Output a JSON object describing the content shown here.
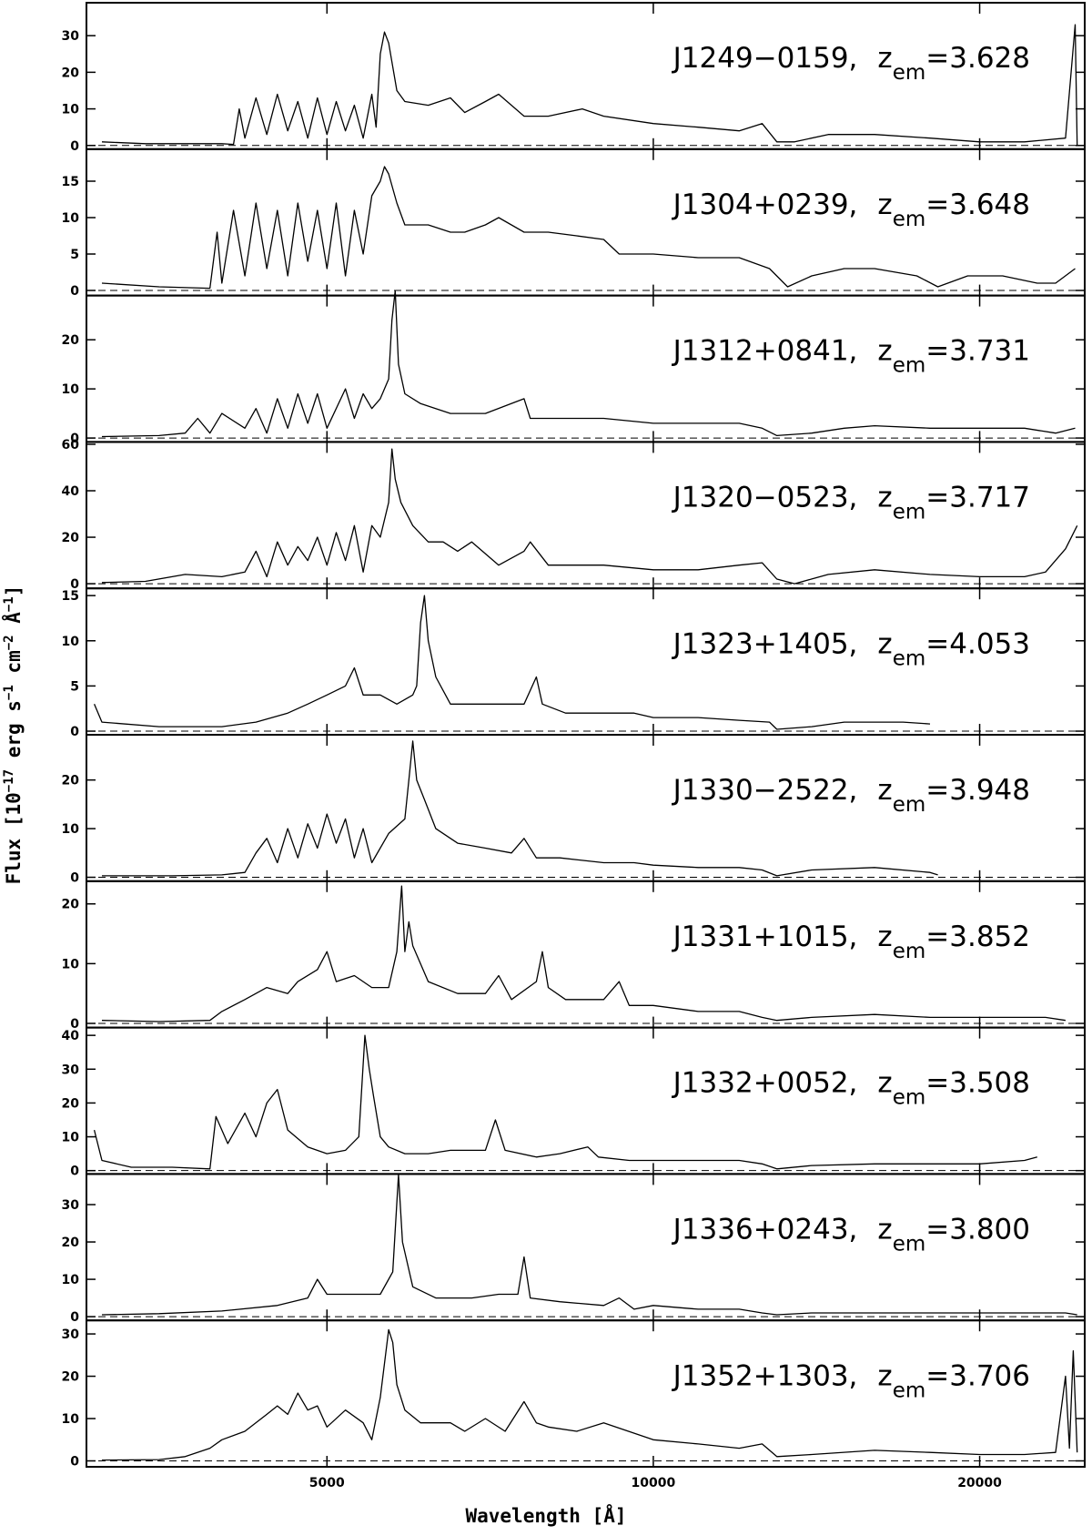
{
  "figure": {
    "xlabel": "Wavelength [Å]",
    "ylabel_parts": [
      "Flux [10",
      "−17",
      " erg s",
      "−1",
      " cm",
      "−2",
      " Å",
      "−1",
      "]"
    ]
  },
  "chart_data": [
    {
      "type": "line",
      "label": "J1249−0159,",
      "z": "z",
      "sub": "em",
      "zvalue": "=3.628",
      "color": "#000000",
      "xscale": "log",
      "xlim": [
        3000,
        25000
      ],
      "xticks": [
        5000,
        10000,
        20000
      ],
      "ylim": [
        -1,
        39
      ],
      "yticks": [
        0,
        10,
        20,
        30
      ],
      "x": [
        3100,
        3400,
        4000,
        4100,
        4150,
        4200,
        4300,
        4400,
        4500,
        4600,
        4700,
        4800,
        4900,
        5000,
        5100,
        5200,
        5300,
        5400,
        5500,
        5550,
        5600,
        5650,
        5700,
        5800,
        5900,
        6200,
        6500,
        6700,
        7000,
        7200,
        7600,
        8000,
        8600,
        9000,
        10000,
        11000,
        12000,
        12600,
        13000,
        13500,
        14500,
        16000,
        18000,
        20000,
        22000,
        24000,
        24500,
        24600
      ],
      "values": [
        1,
        0.5,
        0.5,
        0.3,
        10,
        2,
        13,
        3,
        14,
        4,
        12,
        2,
        13,
        3,
        12,
        4,
        11,
        2,
        14,
        5,
        25,
        31,
        28,
        15,
        12,
        11,
        13,
        9,
        12,
        14,
        8,
        8,
        10,
        8,
        6,
        5,
        4,
        6,
        1,
        1,
        3,
        3,
        2,
        1,
        1,
        2,
        33,
        0
      ]
    },
    {
      "type": "line",
      "label": "J1304+0239,",
      "z": "z",
      "sub": "em",
      "zvalue": "=3.648",
      "color": "#000000",
      "xscale": "log",
      "xlim": [
        3000,
        25000
      ],
      "xticks": [
        5000,
        10000,
        20000
      ],
      "ylim": [
        -0.7,
        19.4
      ],
      "yticks": [
        0,
        5,
        10,
        15
      ],
      "x": [
        3100,
        3500,
        3900,
        3960,
        4000,
        4100,
        4200,
        4300,
        4400,
        4500,
        4600,
        4700,
        4800,
        4900,
        5000,
        5100,
        5200,
        5300,
        5400,
        5500,
        5600,
        5650,
        5700,
        5800,
        5900,
        6200,
        6500,
        6700,
        7000,
        7200,
        7600,
        8000,
        8500,
        9000,
        9300,
        10000,
        11000,
        12000,
        12800,
        13300,
        14000,
        15000,
        16000,
        17500,
        18300,
        19500,
        21000,
        22600,
        23500,
        24500
      ],
      "values": [
        1,
        0.5,
        0.3,
        8,
        1,
        11,
        2,
        12,
        3,
        11,
        2,
        12,
        4,
        11,
        3,
        12,
        2,
        11,
        5,
        13,
        15,
        17,
        16,
        12,
        9,
        9,
        8,
        8,
        9,
        10,
        8,
        8,
        7.5,
        7,
        5,
        5,
        4.5,
        4.5,
        3,
        0.5,
        2,
        3,
        3,
        2,
        0.5,
        2,
        2,
        1,
        1,
        3
      ]
    },
    {
      "type": "line",
      "label": "J1312+0841,",
      "z": "z",
      "sub": "em",
      "zvalue": "=3.731",
      "color": "#000000",
      "xscale": "log",
      "xlim": [
        3000,
        25000
      ],
      "xticks": [
        5000,
        10000,
        20000
      ],
      "ylim": [
        -0.8,
        29
      ],
      "yticks": [
        0,
        10,
        20
      ],
      "x": [
        3100,
        3500,
        3700,
        3800,
        3900,
        4000,
        4200,
        4300,
        4400,
        4500,
        4600,
        4700,
        4800,
        4900,
        5000,
        5200,
        5300,
        5400,
        5500,
        5600,
        5700,
        5740,
        5780,
        5820,
        5900,
        6100,
        6500,
        7000,
        7600,
        7700,
        8200,
        9000,
        10000,
        11000,
        12000,
        12600,
        13000,
        14000,
        15000,
        16000,
        18000,
        20000,
        22000,
        23500,
        24500
      ],
      "values": [
        0.3,
        0.5,
        1,
        4,
        1,
        5,
        2,
        6,
        1,
        8,
        2,
        9,
        3,
        9,
        2,
        10,
        4,
        9,
        6,
        8,
        12,
        24,
        30,
        15,
        9,
        7,
        5,
        5,
        8,
        4,
        4,
        4,
        3,
        3,
        3,
        2,
        0.5,
        1,
        2,
        2.5,
        2,
        2,
        2,
        1,
        2
      ]
    },
    {
      "type": "line",
      "label": "J1320−0523,",
      "z": "z",
      "sub": "em",
      "zvalue": "=3.717",
      "color": "#000000",
      "xscale": "log",
      "xlim": [
        3000,
        25000
      ],
      "xticks": [
        5000,
        10000,
        20000
      ],
      "ylim": [
        -2,
        61
      ],
      "yticks": [
        0,
        20,
        40,
        60
      ],
      "x": [
        3100,
        3400,
        3700,
        4000,
        4200,
        4300,
        4400,
        4500,
        4600,
        4700,
        4800,
        4900,
        5000,
        5100,
        5200,
        5300,
        5400,
        5500,
        5600,
        5700,
        5740,
        5780,
        5850,
        6000,
        6200,
        6400,
        6600,
        6800,
        7200,
        7600,
        7700,
        8000,
        8500,
        9000,
        10000,
        11000,
        12000,
        12600,
        13000,
        13500,
        14500,
        16000,
        18000,
        20000,
        22000,
        23000,
        24000,
        24600
      ],
      "values": [
        0.5,
        1,
        4,
        3,
        5,
        14,
        3,
        18,
        8,
        16,
        10,
        20,
        8,
        22,
        10,
        25,
        5,
        25,
        20,
        35,
        58,
        45,
        35,
        25,
        18,
        18,
        14,
        18,
        8,
        14,
        18,
        8,
        8,
        8,
        6,
        6,
        8,
        9,
        2,
        0,
        4,
        6,
        4,
        3,
        3,
        5,
        15,
        25
      ]
    },
    {
      "type": "line",
      "label": "J1323+1405,",
      "z": "z",
      "sub": "em",
      "zvalue": "=4.053",
      "color": "#000000",
      "xscale": "log",
      "xlim": [
        3000,
        25000
      ],
      "xticks": [
        5000,
        10000,
        20000
      ],
      "ylim": [
        -0.4,
        15.8
      ],
      "yticks": [
        0,
        5,
        10,
        15
      ],
      "x": [
        3050,
        3100,
        3500,
        4000,
        4300,
        4600,
        4800,
        5000,
        5200,
        5300,
        5400,
        5600,
        5800,
        6000,
        6050,
        6100,
        6150,
        6200,
        6300,
        6500,
        6800,
        7200,
        7600,
        7800,
        7900,
        8300,
        9000,
        9600,
        10000,
        11000,
        12000,
        12800,
        13000,
        14000,
        15000,
        16000,
        17000,
        18000
      ],
      "values": [
        3,
        1,
        0.5,
        0.5,
        1,
        2,
        3,
        4,
        5,
        7,
        4,
        4,
        3,
        4,
        5,
        12,
        15,
        10,
        6,
        3,
        3,
        3,
        3,
        6,
        3,
        2,
        2,
        2,
        1.5,
        1.5,
        1.2,
        1,
        0.2,
        0.5,
        1,
        1,
        1,
        0.8
      ]
    },
    {
      "type": "line",
      "label": "J1330−2522,",
      "z": "z",
      "sub": "em",
      "zvalue": "=3.948",
      "color": "#000000",
      "xscale": "log",
      "xlim": [
        3000,
        25000
      ],
      "xticks": [
        5000,
        10000,
        20000
      ],
      "ylim": [
        -0.8,
        29.3
      ],
      "yticks": [
        0,
        10,
        20
      ],
      "x": [
        3100,
        3600,
        4000,
        4200,
        4300,
        4400,
        4500,
        4600,
        4700,
        4800,
        4900,
        5000,
        5100,
        5200,
        5300,
        5400,
        5500,
        5700,
        5900,
        5950,
        6000,
        6050,
        6150,
        6300,
        6600,
        7000,
        7400,
        7600,
        7800,
        8200,
        9000,
        9600,
        10000,
        11000,
        12000,
        12600,
        13000,
        14000,
        16000,
        18000,
        18300
      ],
      "values": [
        0.3,
        0.3,
        0.5,
        1,
        5,
        8,
        3,
        10,
        4,
        11,
        6,
        13,
        7,
        12,
        4,
        10,
        3,
        9,
        12,
        20,
        28,
        20,
        16,
        10,
        7,
        6,
        5,
        8,
        4,
        4,
        3,
        3,
        2.5,
        2,
        2,
        1.5,
        0.3,
        1.5,
        2,
        1,
        0.5
      ]
    },
    {
      "type": "line",
      "label": "J1331+1015,",
      "z": "z",
      "sub": "em",
      "zvalue": "=3.852",
      "color": "#000000",
      "xscale": "log",
      "xlim": [
        3000,
        25000
      ],
      "xticks": [
        5000,
        10000,
        20000
      ],
      "ylim": [
        -0.7,
        23.8
      ],
      "yticks": [
        0,
        10,
        20
      ],
      "x": [
        3100,
        3500,
        3900,
        4000,
        4200,
        4400,
        4600,
        4700,
        4900,
        5000,
        5100,
        5300,
        5500,
        5700,
        5800,
        5860,
        5900,
        5950,
        6000,
        6200,
        6600,
        7000,
        7200,
        7400,
        7800,
        7900,
        8000,
        8300,
        9000,
        9300,
        9500,
        10000,
        11000,
        12000,
        12600,
        13000,
        14000,
        16000,
        18000,
        20000,
        22000,
        23000,
        24000
      ],
      "values": [
        0.5,
        0.3,
        0.5,
        2,
        4,
        6,
        5,
        7,
        9,
        12,
        7,
        8,
        6,
        6,
        12,
        23,
        12,
        17,
        13,
        7,
        5,
        5,
        8,
        4,
        7,
        12,
        6,
        4,
        4,
        7,
        3,
        3,
        2,
        2,
        1,
        0.5,
        1,
        1.5,
        1,
        1,
        1,
        1,
        0.5
      ]
    },
    {
      "type": "line",
      "label": "J1332+0052,",
      "z": "z",
      "sub": "em",
      "zvalue": "=3.508",
      "color": "#000000",
      "xscale": "log",
      "xlim": [
        3000,
        25000
      ],
      "xticks": [
        5000,
        10000,
        20000
      ],
      "ylim": [
        -1,
        42.3
      ],
      "yticks": [
        0,
        10,
        20,
        30,
        40
      ],
      "x": [
        3050,
        3100,
        3300,
        3600,
        3900,
        3950,
        4050,
        4200,
        4300,
        4400,
        4500,
        4600,
        4800,
        5000,
        5200,
        5350,
        5420,
        5470,
        5520,
        5600,
        5700,
        5900,
        6200,
        6500,
        7000,
        7150,
        7300,
        7800,
        8200,
        8700,
        8900,
        9500,
        10000,
        11000,
        12000,
        12600,
        13000,
        14000,
        16000,
        18000,
        20000,
        22000,
        22600
      ],
      "values": [
        12,
        3,
        1,
        1,
        0.5,
        16,
        8,
        17,
        10,
        20,
        24,
        12,
        7,
        5,
        6,
        10,
        40,
        30,
        22,
        10,
        7,
        5,
        5,
        6,
        6,
        15,
        6,
        4,
        5,
        7,
        4,
        3,
        3,
        3,
        3,
        2,
        0.5,
        1.5,
        2,
        2,
        2,
        3,
        4
      ]
    },
    {
      "type": "line",
      "label": "J1336+0243,",
      "z": "z",
      "sub": "em",
      "zvalue": "=3.800",
      "color": "#000000",
      "xscale": "log",
      "xlim": [
        3000,
        25000
      ],
      "xticks": [
        5000,
        10000,
        20000
      ],
      "ylim": [
        -1,
        38.2
      ],
      "yticks": [
        0,
        10,
        20,
        30
      ],
      "x": [
        3100,
        3500,
        4000,
        4500,
        4800,
        4900,
        5000,
        5300,
        5600,
        5750,
        5820,
        5870,
        6000,
        6300,
        6800,
        7200,
        7500,
        7600,
        7700,
        8200,
        9000,
        9300,
        9600,
        10000,
        11000,
        12000,
        12600,
        13000,
        14000,
        16000,
        18000,
        20000,
        22000,
        24000,
        24600
      ],
      "values": [
        0.5,
        0.8,
        1.5,
        3,
        5,
        10,
        6,
        6,
        6,
        12,
        38,
        20,
        8,
        5,
        5,
        6,
        6,
        16,
        5,
        4,
        3,
        5,
        2,
        3,
        2,
        2,
        1,
        0.5,
        1,
        1,
        1,
        1,
        1,
        1,
        0.5
      ]
    },
    {
      "type": "line",
      "label": "J1352+1303,",
      "z": "z",
      "sub": "em",
      "zvalue": "=3.706",
      "color": "#000000",
      "xscale": "log",
      "xlim": [
        3000,
        25000
      ],
      "xticks": [
        5000,
        10000,
        20000
      ],
      "ylim": [
        -1.4,
        33.2
      ],
      "yticks": [
        0,
        10,
        20,
        30
      ],
      "x": [
        3100,
        3500,
        3700,
        3900,
        4000,
        4200,
        4400,
        4500,
        4600,
        4700,
        4800,
        4900,
        5000,
        5200,
        5400,
        5500,
        5600,
        5700,
        5750,
        5800,
        5900,
        6100,
        6500,
        6700,
        7000,
        7300,
        7600,
        7800,
        8000,
        8500,
        9000,
        10000,
        11000,
        12000,
        12600,
        13000,
        14000,
        16000,
        18000,
        20000,
        22000,
        23500,
        24000,
        24200,
        24400,
        24600
      ],
      "values": [
        0.2,
        0.3,
        1,
        3,
        5,
        7,
        11,
        13,
        11,
        16,
        12,
        13,
        8,
        12,
        9,
        5,
        15,
        31,
        28,
        18,
        12,
        9,
        9,
        7,
        10,
        7,
        14,
        9,
        8,
        7,
        9,
        5,
        4,
        3,
        4,
        1,
        1.5,
        2.5,
        2,
        1.5,
        1.5,
        2,
        20,
        3,
        26,
        2
      ]
    }
  ]
}
